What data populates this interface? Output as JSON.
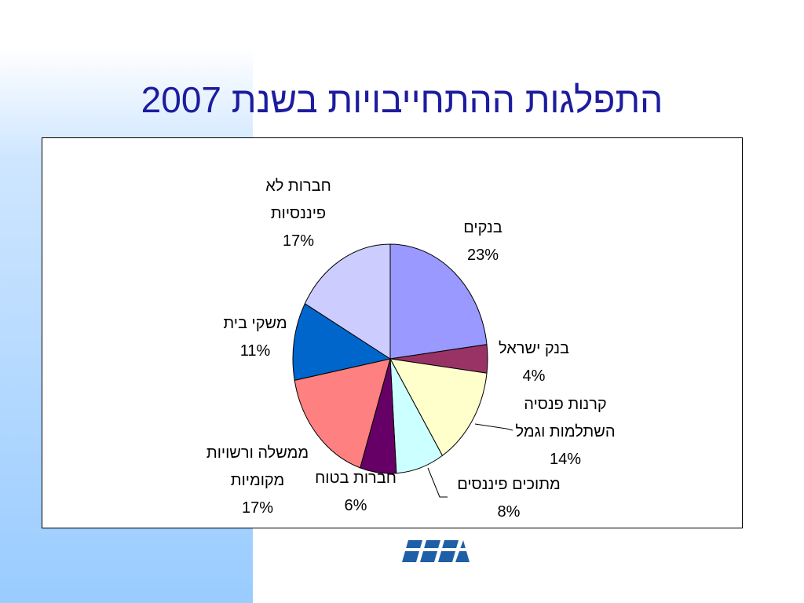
{
  "chart_data": {
    "type": "pie",
    "title": "התפלגות ההתחייבויות בשנת 2007",
    "categories": [
      "בנקים",
      "בנק ישראל",
      "קרנות פנסיה השתלמות וגמל",
      "מתוכים פיננסים",
      "חברות בטוח",
      "ממשלה ורשויות מקומיות",
      "משקי בית",
      "חברות לא פיננסיות"
    ],
    "values": [
      23,
      4,
      14,
      8,
      6,
      17,
      11,
      17
    ],
    "value_labels": [
      "23%",
      "4%",
      "14%",
      "8%",
      "6%",
      "17%",
      "11%",
      "17%"
    ],
    "colors": [
      "#9999ff",
      "#993366",
      "#ffffcc",
      "#ccffff",
      "#660066",
      "#ff8080",
      "#0066cc",
      "#ccccff"
    ]
  }
}
